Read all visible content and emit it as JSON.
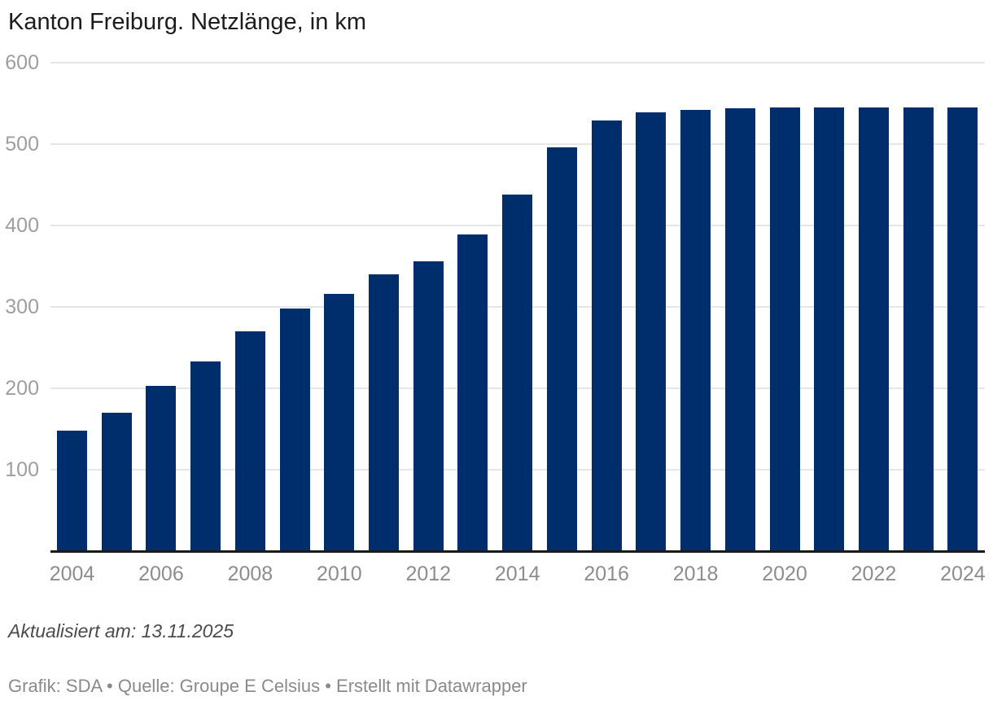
{
  "title": "Kanton Freiburg. Netzlänge, in km",
  "footer": {
    "updated": "Aktualisiert am: 13.11.2025",
    "byline_prefix": "Grafik: SDA • Quelle: Groupe E Celsius • ",
    "byline_credit": "Erstellt mit Datawrapper"
  },
  "colors": {
    "bar": "#002d6b",
    "gridline": "#e6e6e6",
    "baseline": "#1a1a1a",
    "title_text": "#1c1c1c",
    "y_tick_label": "#9e9e9e",
    "x_tick_label": "#8d8d8d",
    "updated_text": "#4b4b4b",
    "byline_text": "#8a8a8a"
  },
  "chart_data": {
    "type": "bar",
    "title": "Kanton Freiburg. Netzlänge, in km",
    "unit": "km",
    "categories": [
      2004,
      2005,
      2006,
      2007,
      2008,
      2009,
      2010,
      2011,
      2012,
      2013,
      2014,
      2015,
      2016,
      2017,
      2018,
      2019,
      2020,
      2021,
      2022,
      2023,
      2024
    ],
    "values": [
      148,
      170,
      203,
      233,
      270,
      298,
      316,
      340,
      356,
      389,
      438,
      496,
      529,
      539,
      542,
      544,
      545,
      545,
      545,
      545,
      545
    ],
    "xlabel": "",
    "ylabel": "",
    "ylim": [
      0,
      600
    ],
    "yticks": [
      100,
      200,
      300,
      400,
      500,
      600
    ],
    "xticks": [
      2004,
      2006,
      2008,
      2010,
      2012,
      2014,
      2016,
      2018,
      2020,
      2022,
      2024
    ],
    "grid": "horizontal",
    "legend": "none"
  }
}
